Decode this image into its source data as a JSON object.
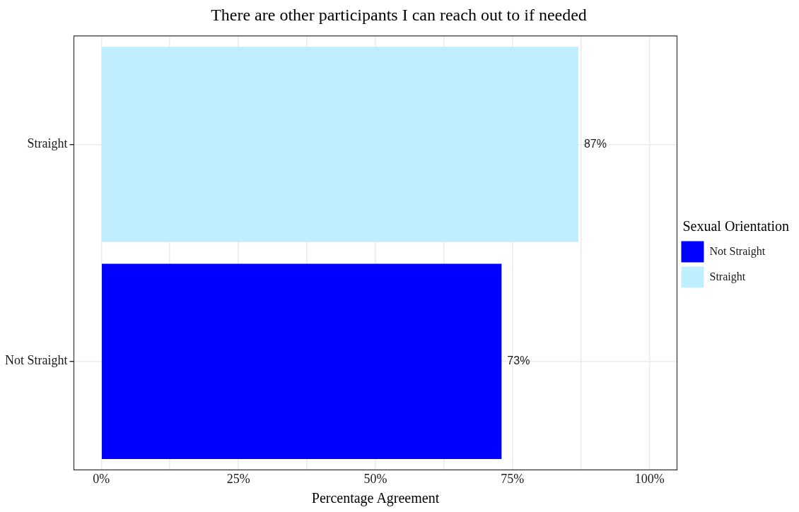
{
  "chart_data": {
    "type": "bar",
    "orientation": "horizontal",
    "title": "There are other participants I can reach out to if needed",
    "xlabel": "Percentage Agreement",
    "legend_title": "Sexual Orientation",
    "categories": [
      "Straight",
      "Not Straight"
    ],
    "series": [
      {
        "name": "Not Straight",
        "color": "#0000ff",
        "values": [
          null,
          73
        ],
        "value_labels": [
          null,
          "73%"
        ]
      },
      {
        "name": "Straight",
        "color": "#bfefff",
        "values": [
          87,
          null
        ],
        "value_labels": [
          "87%",
          null
        ]
      }
    ],
    "xlim": [
      -5,
      105
    ],
    "xticks": [
      {
        "value": 0,
        "label": "0%"
      },
      {
        "value": 12.5,
        "label": null
      },
      {
        "value": 25,
        "label": "25%"
      },
      {
        "value": 37.5,
        "label": null
      },
      {
        "value": 50,
        "label": "50%"
      },
      {
        "value": 62.5,
        "label": null
      },
      {
        "value": 75,
        "label": "75%"
      },
      {
        "value": 87.5,
        "label": null
      },
      {
        "value": 100,
        "label": "100%"
      }
    ],
    "grid": true,
    "legend": "right"
  }
}
